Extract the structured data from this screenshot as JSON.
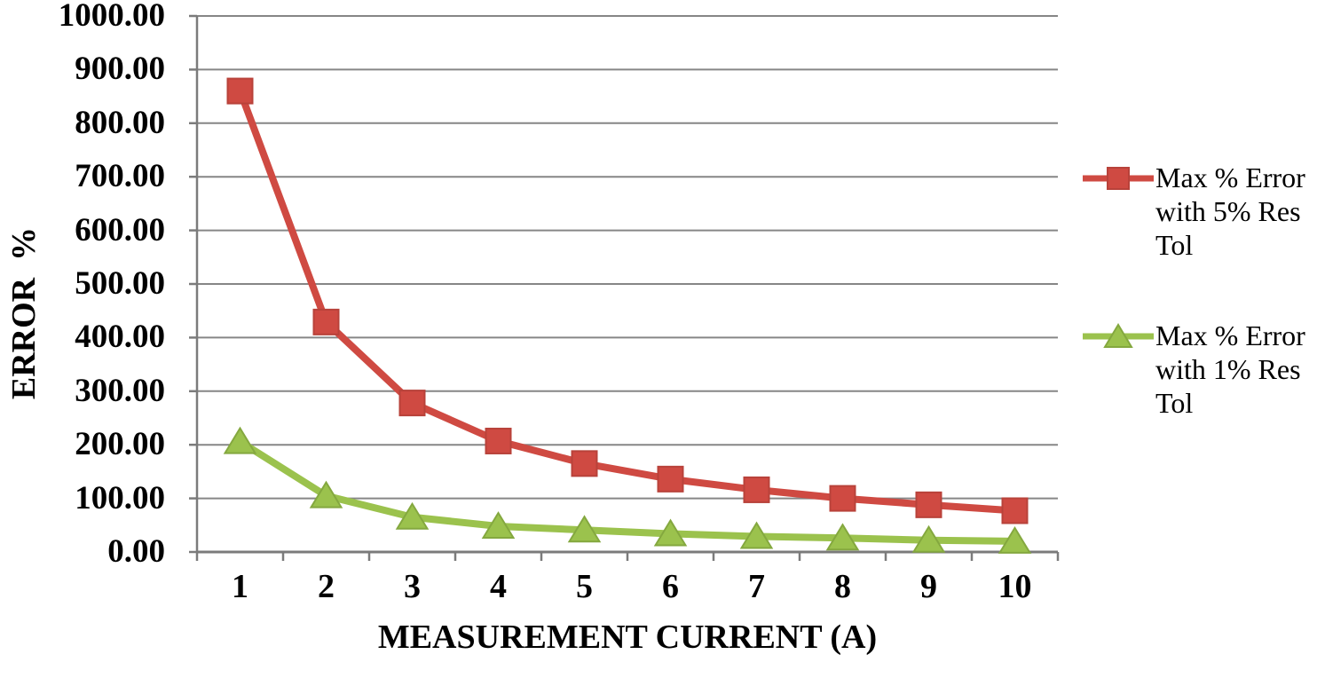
{
  "figure": {
    "background": "#ffffff",
    "text_color": "#000000"
  },
  "chart_data": {
    "type": "line",
    "title": "",
    "xlabel": "MEASUREMENT CURRENT (A)",
    "ylabel": "ERROR  %",
    "x": [
      1,
      2,
      3,
      4,
      5,
      6,
      7,
      8,
      9,
      10
    ],
    "x_tick_labels": [
      "1",
      "2",
      "3",
      "4",
      "5",
      "6",
      "7",
      "8",
      "9",
      "10"
    ],
    "y_ticks": [
      0,
      100,
      200,
      300,
      400,
      500,
      600,
      700,
      800,
      900,
      1000
    ],
    "y_tick_labels": [
      "0.00",
      "100.00",
      "200.00",
      "300.00",
      "400.00",
      "500.00",
      "600.00",
      "700.00",
      "800.00",
      "900.00",
      "1000.00"
    ],
    "ylim": [
      0,
      1000
    ],
    "grid": "horizontal",
    "legend_position": "right",
    "series": [
      {
        "name": "Max % Error with 5% Res Tol",
        "marker": "square",
        "color": "#cf4a42",
        "edge": "#b8423a",
        "values": [
          860,
          429,
          278,
          207,
          165,
          136,
          116,
          100,
          88,
          77
        ]
      },
      {
        "name": "Max % Error with 1% Res Tol",
        "marker": "triangle",
        "color": "#9bc24d",
        "edge": "#84a83f",
        "values": [
          206,
          105,
          65,
          48,
          41,
          34,
          29,
          26,
          22,
          20
        ]
      }
    ],
    "colors": {
      "gridline": "#868686",
      "axis": "#7b7b7b"
    }
  }
}
